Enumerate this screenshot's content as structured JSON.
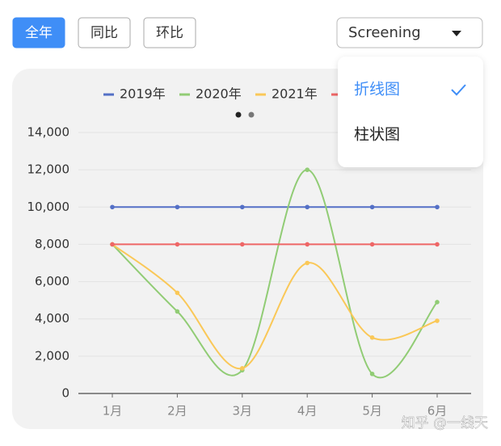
{
  "toolbar": {
    "buttons": [
      "全年",
      "同比",
      "环比"
    ],
    "active": 0,
    "dropdown": "Screening"
  },
  "menu": {
    "items": [
      "折线图",
      "柱状图"
    ],
    "selected": 0
  },
  "chart_data": {
    "type": "line",
    "smooth": true,
    "categories": [
      "1月",
      "2月",
      "3月",
      "4月",
      "5月",
      "6月"
    ],
    "series": [
      {
        "name": "2019年",
        "color": "#5470c6",
        "values": [
          10000,
          10000,
          10000,
          10000,
          10000,
          10000
        ]
      },
      {
        "name": "2020年",
        "color": "#91cc75",
        "values": [
          8000,
          4400,
          1250,
          12000,
          1050,
          4900
        ]
      },
      {
        "name": "2021年",
        "color": "#fac858",
        "values": [
          8000,
          5400,
          1350,
          7000,
          3000,
          3900
        ]
      },
      {
        "color": "#ee6666",
        "values": [
          8000,
          8000,
          8000,
          8000,
          8000,
          8000
        ]
      }
    ],
    "ylim": [
      0,
      14000
    ],
    "yticks": [
      0,
      {
        "value": 2000,
        "label": "2,000"
      },
      {
        "value": 4000,
        "label": "4,000"
      },
      {
        "value": 6000,
        "label": "6,000"
      },
      {
        "value": 8000,
        "label": "8,000"
      },
      {
        "value": 10000,
        "label": "10,000"
      },
      {
        "value": 12000,
        "label": "12,000"
      },
      {
        "value": 14000,
        "label": "14,000"
      }
    ],
    "grid": true
  },
  "watermark": "知乎 @一线天"
}
